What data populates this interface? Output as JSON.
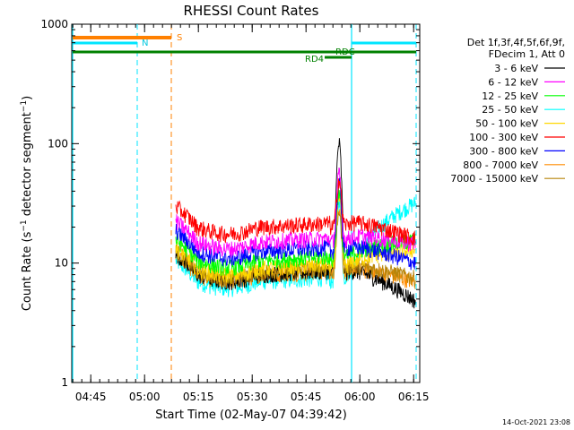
{
  "chart_data": {
    "type": "line",
    "title": "RHESSI Count Rates",
    "xlabel": "Start Time (02-May-07 04:39:42)",
    "ylabel_main": "Count Rate (s",
    "ylabel_sup1": "−1",
    "ylabel_mid": " detector segment",
    "ylabel_sup2": "−1",
    "ylabel_end": ")",
    "y_scale": "log",
    "ylim": [
      1,
      1000
    ],
    "xlim_minutes": [
      0,
      97
    ],
    "x_ticks": [
      {
        "label": "04:45",
        "minute": 5.3
      },
      {
        "label": "05:00",
        "minute": 20.3
      },
      {
        "label": "05:15",
        "minute": 35.3
      },
      {
        "label": "05:30",
        "minute": 50.3
      },
      {
        "label": "05:45",
        "minute": 65.3
      },
      {
        "label": "06:00",
        "minute": 80.3
      },
      {
        "label": "06:15",
        "minute": 95.3
      }
    ],
    "y_ticks": [
      {
        "label": "1",
        "value": 1
      },
      {
        "label": "10",
        "value": 10
      },
      {
        "label": "100",
        "value": 100
      },
      {
        "label": "1000",
        "value": 1000
      }
    ],
    "legend_header": [
      "Det 1f,3f,4f,5f,6f,9f,",
      "FDecim 1, Att 0"
    ],
    "series": [
      {
        "name": "3 - 6 keV",
        "color": "#000000",
        "base": 8.0,
        "peak": 100,
        "end": 4.8
      },
      {
        "name": "6 - 12 keV",
        "color": "#ff00ff",
        "base": 15.0,
        "peak": 55,
        "end": 14.5
      },
      {
        "name": "12 - 25 keV",
        "color": "#00ff00",
        "base": 10.5,
        "peak": 40,
        "end": 15.5
      },
      {
        "name": "25 - 50 keV",
        "color": "#00ffff",
        "base": 7.0,
        "peak": 30,
        "end": 32
      },
      {
        "name": "50 - 100 keV",
        "color": "#ffd700",
        "base": 9.0,
        "peak": 35,
        "end": 13
      },
      {
        "name": "100 - 300 keV",
        "color": "#ff0000",
        "base": 20.0,
        "peak": 50,
        "end": 16
      },
      {
        "name": "300 - 800 keV",
        "color": "#0000ff",
        "base": 12.5,
        "peak": 45,
        "end": 10
      },
      {
        "name": "800 - 7000 keV",
        "color": "#ff8c00",
        "base": 8.0,
        "peak": 30,
        "end": 7
      },
      {
        "name": "7000 - 15000 keV",
        "color": "#b8860b",
        "base": 8.5,
        "peak": 28,
        "end": 7.5
      }
    ],
    "annotations": [
      {
        "label": "S",
        "color": "#ff8000"
      },
      {
        "label": "N",
        "color": "#00e5ff"
      },
      {
        "label": "RDC",
        "color": "#008000"
      },
      {
        "label": "RD4",
        "color": "#008000"
      }
    ],
    "footer_timestamp": "14-Oct-2021 23:08"
  },
  "colors": {
    "attenuator_s": "#ff8000",
    "night": "#00e5ff",
    "decimation": "#008000"
  }
}
